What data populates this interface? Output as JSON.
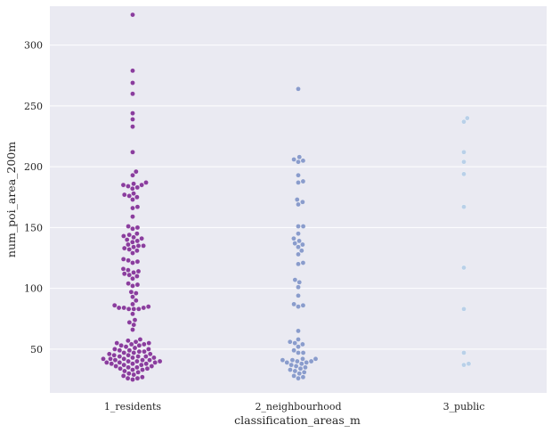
{
  "chart_data": {
    "type": "scatter",
    "subtype": "swarm",
    "xlabel": "classification_areas_m",
    "ylabel": "num_poi_area_200m",
    "categories": [
      "1_residents",
      "2_neighbourhood",
      "3_public"
    ],
    "ylim": [
      14,
      332
    ],
    "yticks": [
      50,
      100,
      150,
      200,
      250,
      300
    ],
    "grid": true,
    "background": "#eaeaf2",
    "colors": [
      "#8a3d9e",
      "#8a9ccc",
      "#b9d0e8"
    ],
    "series": [
      {
        "category": "1_residents",
        "values": [
          325,
          279,
          269,
          260,
          244,
          239,
          233,
          212,
          196,
          193,
          187,
          186,
          185,
          185,
          184,
          183,
          182,
          178,
          177,
          176,
          175,
          173,
          167,
          166,
          159,
          151,
          150,
          149,
          145,
          144,
          143,
          142,
          141,
          140,
          139,
          138,
          136,
          135,
          135,
          134,
          133,
          132,
          131,
          129,
          124,
          123,
          122,
          121,
          116,
          115,
          114,
          113,
          112,
          111,
          110,
          108,
          104,
          103,
          102,
          97,
          96,
          93,
          90,
          87,
          86,
          85,
          84,
          84,
          84,
          83,
          83,
          83,
          79,
          74,
          72,
          70,
          66,
          58,
          57,
          56,
          55,
          55,
          54,
          54,
          53,
          53,
          52,
          51,
          50,
          50,
          49,
          49,
          48,
          48,
          47,
          47,
          46,
          46,
          45,
          45,
          44,
          44,
          44,
          43,
          43,
          42,
          42,
          42,
          41,
          41,
          41,
          40,
          40,
          40,
          39,
          39,
          39,
          38,
          38,
          38,
          37,
          37,
          36,
          36,
          35,
          35,
          34,
          34,
          33,
          33,
          32,
          31,
          30,
          29,
          28,
          27,
          26,
          26,
          25
        ]
      },
      {
        "category": "2_neighbourhood",
        "values": [
          264,
          208,
          206,
          205,
          204,
          193,
          188,
          187,
          173,
          171,
          169,
          151,
          151,
          145,
          141,
          139,
          137,
          136,
          134,
          131,
          128,
          121,
          120,
          107,
          105,
          101,
          94,
          87,
          86,
          85,
          65,
          58,
          56,
          55,
          54,
          52,
          49,
          47,
          47,
          42,
          42,
          41,
          41,
          40,
          40,
          39,
          39,
          38,
          37,
          36,
          35,
          34,
          33,
          32,
          31,
          30,
          28,
          27,
          26
        ]
      },
      {
        "category": "3_public",
        "values": [
          240,
          237,
          212,
          204,
          194,
          167,
          117,
          83,
          47,
          38,
          37
        ]
      }
    ]
  }
}
